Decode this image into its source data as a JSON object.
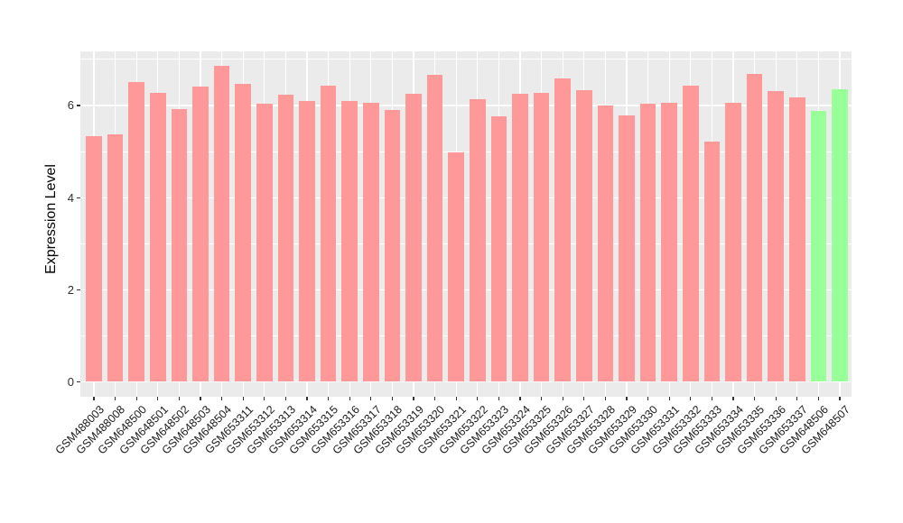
{
  "figure": {
    "title": "",
    "panel_background": "#EBEBEB",
    "gridline_color": "#FFFFFF",
    "axis_text_color": "#303030"
  },
  "chart_data": {
    "type": "bar",
    "title": "",
    "xlabel": "",
    "ylabel": "Expression Level",
    "categories": [
      "GSM488003",
      "GSM488008",
      "GSM648500",
      "GSM648501",
      "GSM648502",
      "GSM648503",
      "GSM648504",
      "GSM653311",
      "GSM653312",
      "GSM653313",
      "GSM653314",
      "GSM653315",
      "GSM653316",
      "GSM653317",
      "GSM653318",
      "GSM653319",
      "GSM653320",
      "GSM653321",
      "GSM653322",
      "GSM653323",
      "GSM653324",
      "GSM653325",
      "GSM653326",
      "GSM653327",
      "GSM653328",
      "GSM653329",
      "GSM653330",
      "GSM653331",
      "GSM653332",
      "GSM653333",
      "GSM653334",
      "GSM653335",
      "GSM653336",
      "GSM653337",
      "GSM648506",
      "GSM648507"
    ],
    "values": [
      5.33,
      5.37,
      6.49,
      6.27,
      5.92,
      6.4,
      6.85,
      6.45,
      6.02,
      6.23,
      6.08,
      6.42,
      6.08,
      6.05,
      5.89,
      6.24,
      6.66,
      4.98,
      6.13,
      5.75,
      6.24,
      6.27,
      6.57,
      6.32,
      5.98,
      5.77,
      6.03,
      6.04,
      6.42,
      5.2,
      6.05,
      6.67,
      6.31,
      6.16,
      5.88,
      6.35
    ],
    "bar_color_default": "#FF9999",
    "bar_color_highlight": "#99FF99",
    "highlight_indices": [
      34,
      35
    ],
    "yticks": [
      0,
      2,
      4,
      6
    ],
    "minor_yticks": [
      1,
      3,
      5,
      7
    ],
    "ylim": [
      -0.31,
      7.17
    ],
    "grid": true,
    "legend": false,
    "x_label_rotation_deg": 45
  }
}
